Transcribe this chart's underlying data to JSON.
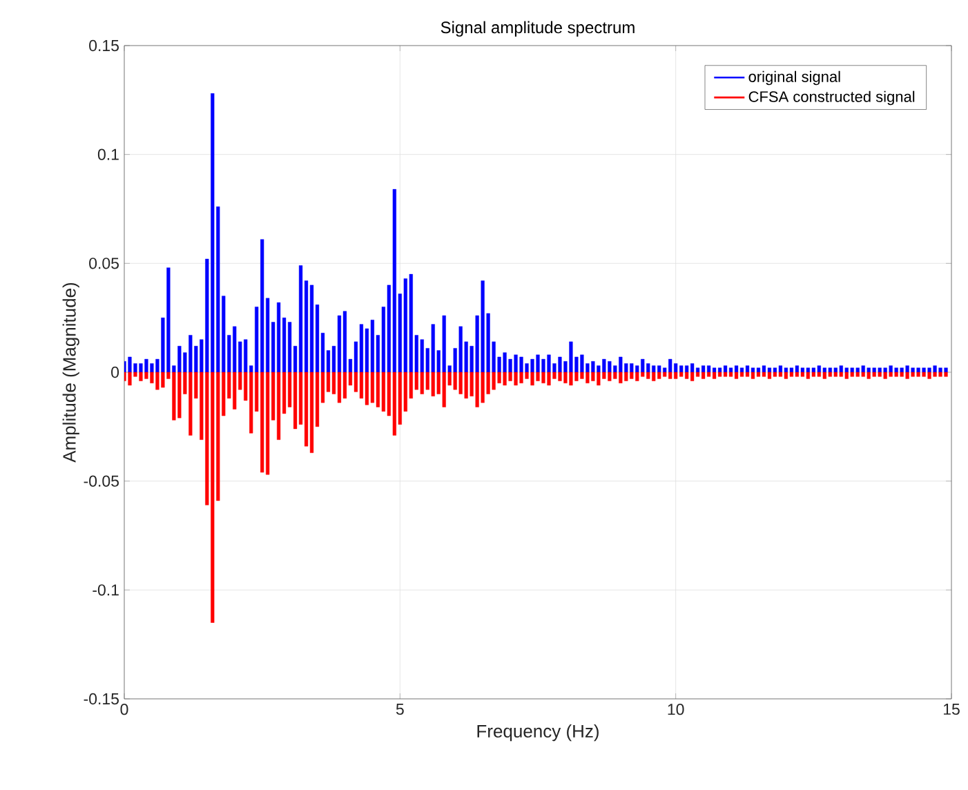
{
  "chart_data": {
    "type": "bar",
    "title": "Signal amplitude spectrum",
    "xlabel": "Frequency (Hz)",
    "ylabel": "Amplitude (Magnitude)",
    "x": [
      0,
      0.1,
      0.2,
      0.3,
      0.4,
      0.5,
      0.6,
      0.7,
      0.8,
      0.9,
      1,
      1.1,
      1.2,
      1.3,
      1.4,
      1.5,
      1.6,
      1.7,
      1.8,
      1.9,
      2,
      2.1,
      2.2,
      2.3,
      2.4,
      2.5,
      2.6,
      2.7,
      2.8,
      2.9,
      3,
      3.1,
      3.2,
      3.3,
      3.4,
      3.5,
      3.6,
      3.7,
      3.8,
      3.9,
      4,
      4.1,
      4.2,
      4.3,
      4.4,
      4.5,
      4.6,
      4.7,
      4.8,
      4.9,
      5,
      5.1,
      5.2,
      5.3,
      5.4,
      5.5,
      5.6,
      5.7,
      5.8,
      5.9,
      6,
      6.1,
      6.2,
      6.3,
      6.4,
      6.5,
      6.6,
      6.7,
      6.8,
      6.9,
      7,
      7.1,
      7.2,
      7.3,
      7.4,
      7.5,
      7.6,
      7.7,
      7.8,
      7.9,
      8,
      8.1,
      8.2,
      8.3,
      8.4,
      8.5,
      8.6,
      8.7,
      8.8,
      8.9,
      9,
      9.1,
      9.2,
      9.3,
      9.4,
      9.5,
      9.6,
      9.7,
      9.8,
      9.9,
      10,
      10.1,
      10.2,
      10.3,
      10.4,
      10.5,
      10.6,
      10.7,
      10.8,
      10.9,
      11,
      11.1,
      11.2,
      11.3,
      11.4,
      11.5,
      11.6,
      11.7,
      11.8,
      11.9,
      12,
      12.1,
      12.2,
      12.3,
      12.4,
      12.5,
      12.6,
      12.7,
      12.8,
      12.9,
      13,
      13.1,
      13.2,
      13.3,
      13.4,
      13.5,
      13.6,
      13.7,
      13.8,
      13.9,
      14,
      14.1,
      14.2,
      14.3,
      14.4,
      14.5,
      14.6,
      14.7,
      14.8,
      14.9
    ],
    "series": [
      {
        "name": "original signal",
        "color": "#0000ff",
        "values": [
          0.005,
          0.007,
          0.004,
          0.004,
          0.006,
          0.004,
          0.006,
          0.025,
          0.048,
          0.003,
          0.012,
          0.009,
          0.017,
          0.012,
          0.015,
          0.052,
          0.128,
          0.076,
          0.035,
          0.017,
          0.021,
          0.014,
          0.015,
          0.003,
          0.03,
          0.061,
          0.034,
          0.023,
          0.032,
          0.025,
          0.023,
          0.012,
          0.049,
          0.042,
          0.04,
          0.031,
          0.018,
          0.01,
          0.012,
          0.026,
          0.028,
          0.006,
          0.014,
          0.022,
          0.02,
          0.024,
          0.017,
          0.03,
          0.04,
          0.084,
          0.036,
          0.043,
          0.045,
          0.017,
          0.015,
          0.011,
          0.022,
          0.01,
          0.026,
          0.003,
          0.011,
          0.021,
          0.014,
          0.012,
          0.026,
          0.042,
          0.027,
          0.014,
          0.007,
          0.009,
          0.006,
          0.008,
          0.007,
          0.004,
          0.006,
          0.008,
          0.006,
          0.008,
          0.004,
          0.007,
          0.005,
          0.014,
          0.007,
          0.008,
          0.004,
          0.005,
          0.003,
          0.006,
          0.005,
          0.003,
          0.007,
          0.004,
          0.004,
          0.003,
          0.006,
          0.004,
          0.003,
          0.003,
          0.002,
          0.006,
          0.004,
          0.003,
          0.003,
          0.004,
          0.002,
          0.003,
          0.003,
          0.002,
          0.002,
          0.003,
          0.002,
          0.003,
          0.002,
          0.003,
          0.002,
          0.002,
          0.003,
          0.002,
          0.002,
          0.003,
          0.002,
          0.002,
          0.003,
          0.002,
          0.002,
          0.002,
          0.003,
          0.002,
          0.002,
          0.002,
          0.003,
          0.002,
          0.002,
          0.002,
          0.003,
          0.002,
          0.002,
          0.002,
          0.002,
          0.003,
          0.002,
          0.002,
          0.003,
          0.002,
          0.002,
          0.002,
          0.002,
          0.003,
          0.002,
          0.002
        ]
      },
      {
        "name": "CFSA constructed signal",
        "color": "#ff0000",
        "values": [
          -0.004,
          -0.006,
          -0.002,
          -0.004,
          -0.003,
          -0.005,
          -0.008,
          -0.007,
          -0.003,
          -0.022,
          -0.021,
          -0.01,
          -0.029,
          -0.012,
          -0.031,
          -0.061,
          -0.115,
          -0.059,
          -0.02,
          -0.012,
          -0.017,
          -0.008,
          -0.013,
          -0.028,
          -0.018,
          -0.046,
          -0.047,
          -0.022,
          -0.031,
          -0.019,
          -0.016,
          -0.026,
          -0.024,
          -0.034,
          -0.037,
          -0.025,
          -0.014,
          -0.009,
          -0.01,
          -0.014,
          -0.012,
          -0.006,
          -0.009,
          -0.012,
          -0.015,
          -0.014,
          -0.016,
          -0.018,
          -0.02,
          -0.029,
          -0.024,
          -0.018,
          -0.012,
          -0.008,
          -0.01,
          -0.008,
          -0.011,
          -0.01,
          -0.016,
          -0.006,
          -0.008,
          -0.01,
          -0.012,
          -0.011,
          -0.016,
          -0.014,
          -0.01,
          -0.008,
          -0.005,
          -0.006,
          -0.004,
          -0.006,
          -0.005,
          -0.003,
          -0.006,
          -0.004,
          -0.005,
          -0.006,
          -0.003,
          -0.004,
          -0.005,
          -0.006,
          -0.004,
          -0.003,
          -0.005,
          -0.004,
          -0.006,
          -0.003,
          -0.004,
          -0.003,
          -0.005,
          -0.004,
          -0.003,
          -0.004,
          -0.002,
          -0.003,
          -0.004,
          -0.003,
          -0.002,
          -0.003,
          -0.003,
          -0.002,
          -0.003,
          -0.004,
          -0.002,
          -0.003,
          -0.002,
          -0.003,
          -0.002,
          -0.002,
          -0.002,
          -0.003,
          -0.002,
          -0.002,
          -0.003,
          -0.002,
          -0.002,
          -0.003,
          -0.002,
          -0.002,
          -0.003,
          -0.002,
          -0.002,
          -0.002,
          -0.003,
          -0.002,
          -0.002,
          -0.003,
          -0.002,
          -0.002,
          -0.002,
          -0.003,
          -0.002,
          -0.002,
          -0.002,
          -0.003,
          -0.002,
          -0.002,
          -0.003,
          -0.002,
          -0.002,
          -0.002,
          -0.003,
          -0.002,
          -0.002,
          -0.002,
          -0.003,
          -0.002,
          -0.002,
          -0.002
        ]
      }
    ],
    "xlim": [
      0,
      15
    ],
    "ylim": [
      -0.15,
      0.15
    ],
    "xticks": [
      0,
      5,
      10,
      15
    ],
    "yticks": [
      -0.15,
      -0.1,
      -0.05,
      0,
      0.05,
      0.1,
      0.15
    ],
    "grid": true,
    "legend": "top right",
    "stacked": true
  }
}
